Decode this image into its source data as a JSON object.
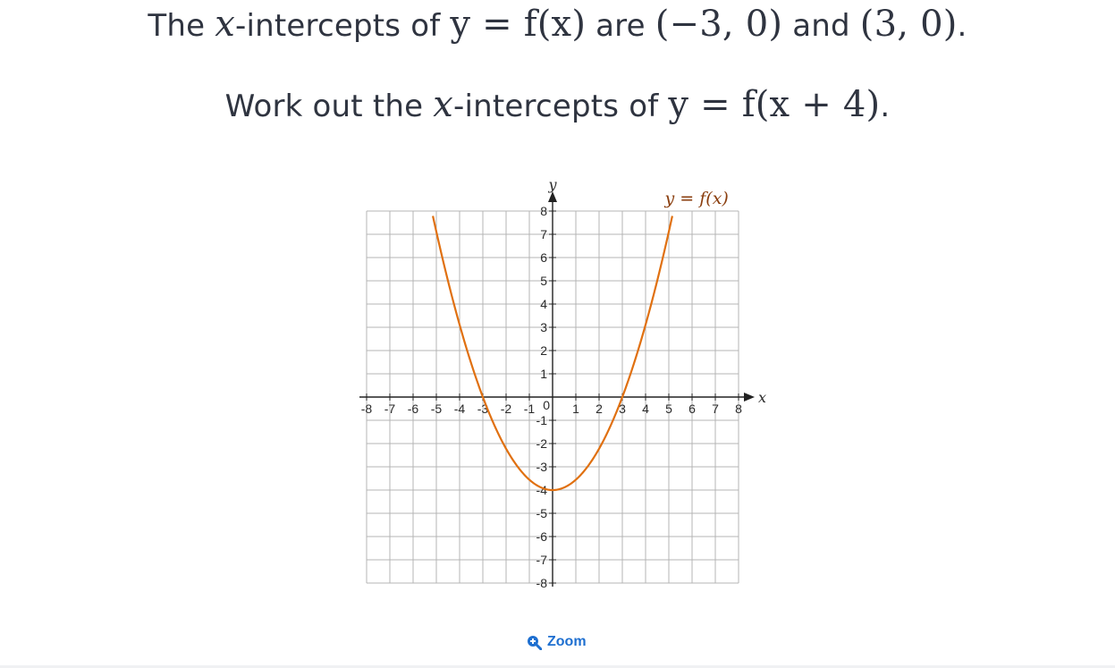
{
  "question": {
    "line1": {
      "t1": "The ",
      "var_x": "x",
      "t2": "-intercepts of ",
      "eq": "y = f(x)",
      "t3": " are ",
      "p1": "(−3, 0)",
      "t4": " and ",
      "p2": "(3, 0)",
      "t5": "."
    },
    "line2": {
      "t1": "Work out the ",
      "var_x": "x",
      "t2": "-intercepts of ",
      "eq": "y = f(x + 4)",
      "t3": "."
    }
  },
  "chart_data": {
    "type": "line",
    "x_label": "x",
    "y_label": "y",
    "xlim": [
      -8,
      8
    ],
    "ylim": [
      -8,
      8
    ],
    "grid": true,
    "x_ticks": [
      "-8",
      "-7",
      "-6",
      "-5",
      "-4",
      "-3",
      "-2",
      "-1",
      "1",
      "2",
      "3",
      "4",
      "5",
      "6",
      "7",
      "8"
    ],
    "y_ticks": [
      "8",
      "7",
      "6",
      "5",
      "4",
      "3",
      "2",
      "1",
      "-1",
      "-2",
      "-3",
      "-4",
      "-5",
      "-6",
      "-7",
      "-8"
    ],
    "origin_label": "0",
    "series": [
      {
        "name": "y = f(x)",
        "function": "(4/9)x^2 - 4",
        "color": "#e07010",
        "key_points": {
          "x": [
            -3,
            0,
            3
          ],
          "y": [
            0,
            -4,
            0
          ]
        }
      }
    ],
    "curve_label": "y = f(x)"
  },
  "zoom": {
    "label": "Zoom",
    "icon": "zoom-in-icon",
    "color": "#1e6fd0"
  }
}
